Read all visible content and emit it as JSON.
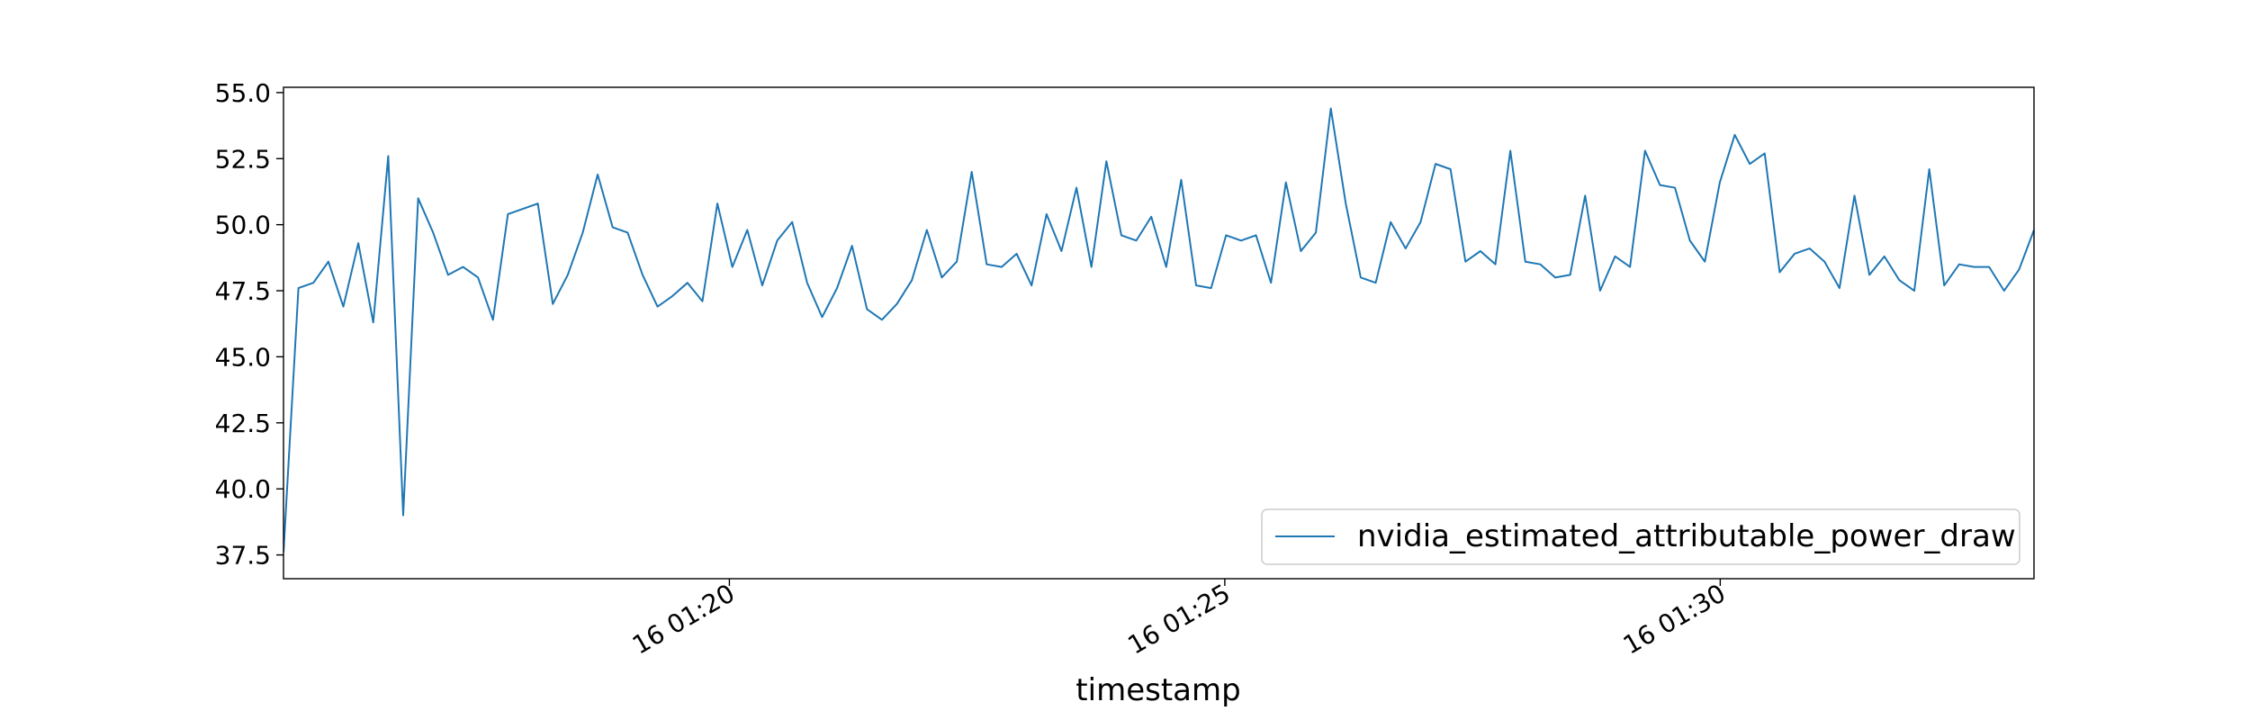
{
  "chart_data": {
    "type": "line",
    "title": "",
    "xlabel": "timestamp",
    "ylabel": "",
    "grid": false,
    "legend_position": "lower-right",
    "line_color": "#1f77b4",
    "x_start": "01:15:30",
    "x_end": "01:33:10",
    "x_ticks": [
      {
        "t": "01:20:00",
        "label": "16 01:20"
      },
      {
        "t": "01:25:00",
        "label": "16 01:25"
      },
      {
        "t": "01:30:00",
        "label": "16 01:30"
      }
    ],
    "ylim": [
      36.6,
      55.2
    ],
    "y_ticks": [
      "37.5",
      "40.0",
      "42.5",
      "45.0",
      "47.5",
      "50.0",
      "52.5",
      "55.0"
    ],
    "series": [
      {
        "name": "nvidia_estimated_attributable_power_draw",
        "values": [
          37.6,
          47.6,
          47.8,
          48.6,
          46.9,
          49.3,
          46.3,
          52.6,
          39.0,
          51.0,
          49.7,
          48.1,
          48.4,
          48.0,
          46.4,
          50.4,
          50.6,
          50.8,
          47.0,
          48.1,
          49.7,
          51.9,
          49.9,
          49.7,
          48.1,
          46.9,
          47.3,
          47.8,
          47.1,
          50.8,
          48.4,
          49.8,
          47.7,
          49.4,
          50.1,
          47.8,
          46.5,
          47.6,
          49.2,
          46.8,
          46.4,
          47.0,
          47.9,
          49.8,
          48.0,
          48.6,
          52.0,
          48.5,
          48.4,
          48.9,
          47.7,
          50.4,
          49.0,
          51.4,
          48.4,
          52.4,
          49.6,
          49.4,
          50.3,
          48.4,
          51.7,
          47.7,
          47.6,
          49.6,
          49.4,
          49.6,
          47.8,
          51.6,
          49.0,
          49.7,
          54.4,
          50.8,
          48.0,
          47.8,
          50.1,
          49.1,
          50.1,
          52.3,
          52.1,
          48.6,
          49.0,
          48.5,
          52.8,
          48.6,
          48.5,
          48.0,
          48.1,
          51.1,
          47.5,
          48.8,
          48.4,
          52.8,
          51.5,
          51.4,
          49.4,
          48.6,
          51.6,
          53.4,
          52.3,
          52.7,
          48.2,
          48.9,
          49.1,
          48.6,
          47.6,
          51.1,
          48.1,
          48.8,
          47.9,
          47.5,
          52.1,
          47.7,
          48.5,
          48.4,
          48.4,
          47.5,
          48.3,
          49.8
        ]
      }
    ]
  }
}
